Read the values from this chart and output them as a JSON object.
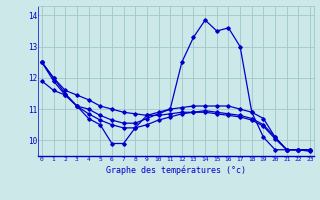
{
  "xlabel": "Graphe des températures (°c)",
  "bg_color": "#cce8e8",
  "grid_color": "#9ec8c8",
  "line_color": "#0000cc",
  "ylim": [
    9.5,
    14.3
  ],
  "xlim": [
    -0.3,
    23.3
  ],
  "yticks": [
    10,
    11,
    12,
    13,
    14
  ],
  "xticks": [
    0,
    1,
    2,
    3,
    4,
    5,
    6,
    7,
    8,
    9,
    10,
    11,
    12,
    13,
    14,
    15,
    16,
    17,
    18,
    19,
    20,
    21,
    22,
    23
  ],
  "series1": [
    12.5,
    12.0,
    11.5,
    11.1,
    10.7,
    10.5,
    9.9,
    9.9,
    10.4,
    10.8,
    10.9,
    11.0,
    12.5,
    13.3,
    13.85,
    13.5,
    13.6,
    13.0,
    10.9,
    10.1,
    9.7,
    9.7,
    9.7,
    9.7
  ],
  "series2": [
    11.9,
    11.6,
    11.45,
    11.1,
    11.0,
    10.8,
    10.65,
    10.55,
    10.55,
    10.7,
    10.85,
    11.0,
    11.05,
    11.1,
    11.1,
    11.1,
    11.1,
    11.0,
    10.9,
    10.7,
    10.1,
    9.7,
    9.7,
    9.7
  ],
  "series3": [
    12.5,
    12.0,
    11.6,
    11.45,
    11.3,
    11.1,
    11.0,
    10.9,
    10.85,
    10.8,
    10.8,
    10.85,
    10.9,
    10.9,
    10.95,
    10.9,
    10.85,
    10.8,
    10.7,
    10.5,
    10.1,
    9.7,
    9.7,
    9.7
  ],
  "series4": [
    12.5,
    11.9,
    11.45,
    11.1,
    10.85,
    10.65,
    10.5,
    10.4,
    10.4,
    10.5,
    10.65,
    10.75,
    10.85,
    10.9,
    10.9,
    10.85,
    10.8,
    10.75,
    10.65,
    10.45,
    10.05,
    9.7,
    9.7,
    9.65
  ]
}
